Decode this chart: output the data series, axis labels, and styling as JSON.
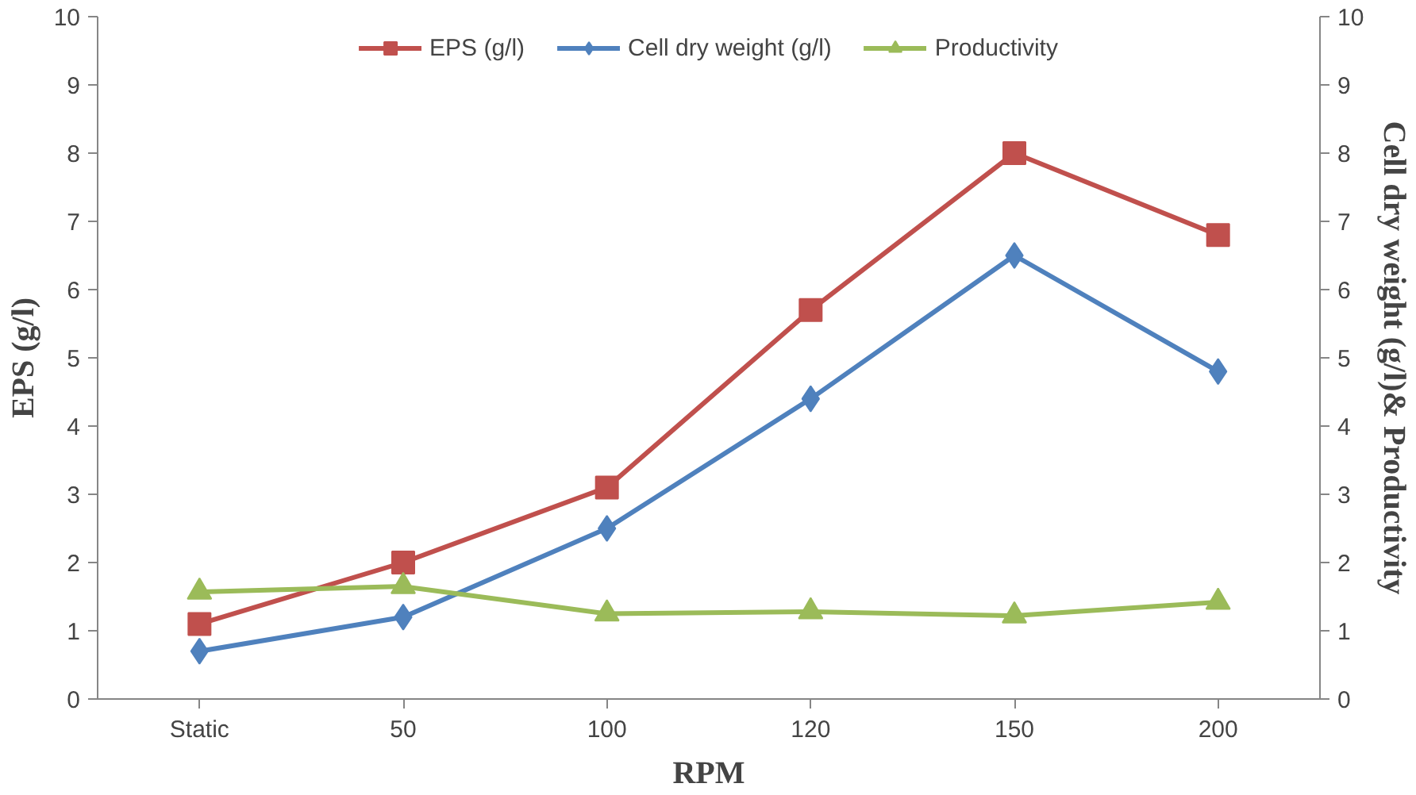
{
  "chart_data": {
    "type": "line",
    "xlabel": "RPM",
    "ylabel": "EPS (g/l)",
    "y2label": "Cell dry weight (g/l)& Productivity",
    "categories": [
      "Static",
      "50",
      "100",
      "120",
      "150",
      "200"
    ],
    "series": [
      {
        "name": "EPS (g/l)",
        "color": "#c0504d",
        "marker": "square",
        "values": [
          1.1,
          2.0,
          3.1,
          5.7,
          8.0,
          6.8
        ]
      },
      {
        "name": "Cell dry weight (g/l)",
        "color": "#4f81bd",
        "marker": "diamond",
        "values": [
          0.7,
          1.2,
          2.5,
          4.4,
          6.5,
          4.8
        ]
      },
      {
        "name": "Productivity",
        "color": "#9bbb59",
        "marker": "triangle",
        "values": [
          1.57,
          1.65,
          1.25,
          1.28,
          1.22,
          1.42
        ]
      }
    ],
    "ylim": [
      0,
      10
    ],
    "yticks": [
      0,
      1,
      2,
      3,
      4,
      5,
      6,
      7,
      8,
      9,
      10
    ],
    "y2lim": [
      0,
      10
    ],
    "y2ticks": [
      0,
      1,
      2,
      3,
      4,
      5,
      6,
      7,
      8,
      9,
      10
    ],
    "grid": false,
    "legend": "top",
    "line_style": "solid"
  }
}
